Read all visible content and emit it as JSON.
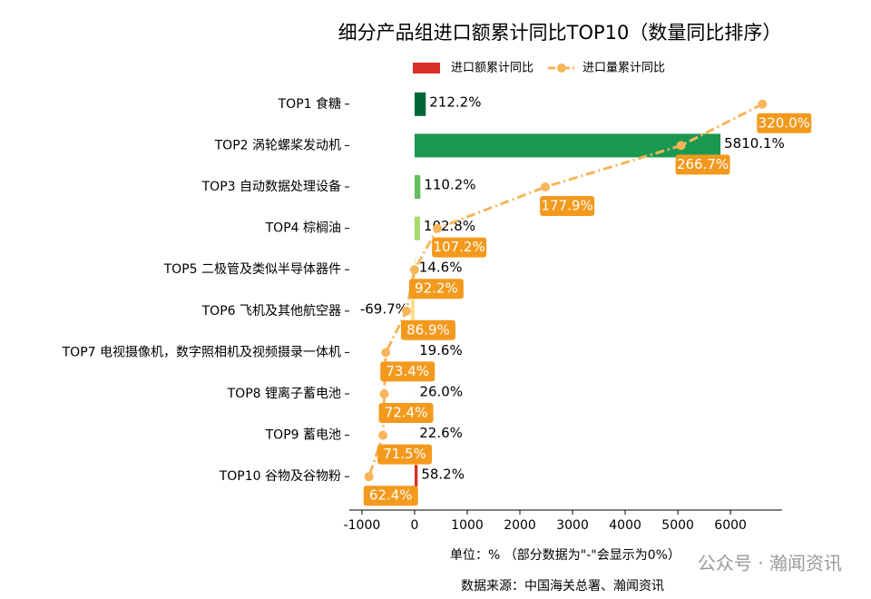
{
  "chart_data": {
    "type": "bar",
    "orientation": "horizontal",
    "title": "细分产品组进口额累计同比TOP10（数量同比排序）",
    "categories": [
      "TOP1 食糖",
      "TOP2 涡轮螺桨发动机",
      "TOP3 自动数据处理设备",
      "TOP4 棕榈油",
      "TOP5 二极管及类似半导体器件",
      "TOP6 飞机及其他航空器",
      "TOP7 电视摄像机，数字照相机及视频摄录一体机",
      "TOP8 锂离子蓄电池",
      "TOP9 蓄电池",
      "TOP10 谷物及谷物粉"
    ],
    "series": [
      {
        "name": "进口额累计同比",
        "type": "bar",
        "color": "#d73027",
        "colors": [
          "#006837",
          "#1a9850",
          "#66bd63",
          "#a6d96a",
          "#d9ef8b",
          "#fee08b",
          "#fdfdfb",
          "#fdfdfb",
          "#fdfdfb",
          "#d73027"
        ],
        "values": [
          212.2,
          5810.1,
          110.2,
          102.8,
          14.6,
          -69.7,
          19.6,
          26.0,
          22.6,
          58.2
        ],
        "value_labels": [
          "212.2%",
          "5810.1%",
          "110.2%",
          "102.8%",
          "14.6%",
          "-69.7%",
          "19.6%",
          "26.0%",
          "22.6%",
          "58.2%"
        ]
      },
      {
        "name": "进口量累计同比",
        "type": "line",
        "axis": "x2",
        "color": "#f8b55a",
        "label_color": "#f39a1e",
        "values": [
          320.0,
          266.7,
          177.9,
          107.2,
          92.2,
          86.9,
          73.4,
          72.4,
          71.5,
          62.4
        ],
        "value_labels": [
          "320.0%",
          "266.7%",
          "177.9%",
          "107.2%",
          "92.2%",
          "86.9%",
          "73.4%",
          "72.4%",
          "71.5%",
          "62.4%"
        ]
      }
    ],
    "xlim": [
      -1240,
      6980
    ],
    "xticks": [
      -1000,
      0,
      1000,
      2000,
      3000,
      4000,
      5000,
      6000
    ],
    "x2lim": [
      49.5,
      332.9
    ],
    "legend": "upper center",
    "note": "单位：% （部分数据为\"-\"会显示为0%）",
    "source": "数据来源：中国海关总署、瀚闻资讯",
    "watermark": "公众号 · 瀚闻资讯"
  }
}
